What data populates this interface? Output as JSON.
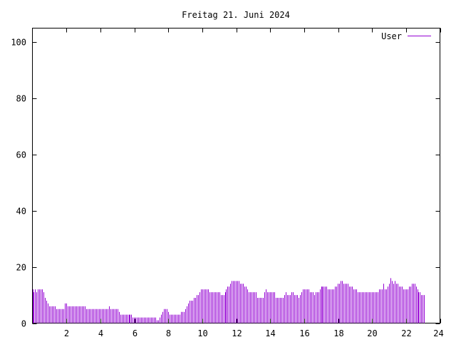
{
  "chart_data": {
    "type": "bar",
    "title": "Freitag 21. Juni 2024",
    "xlabel": "",
    "ylabel": "",
    "xlim": [
      0,
      24
    ],
    "ylim": [
      0,
      105
    ],
    "x_ticks": [
      2,
      4,
      6,
      8,
      10,
      12,
      14,
      16,
      18,
      20,
      22,
      24
    ],
    "y_ticks": [
      0,
      20,
      40,
      60,
      80,
      100
    ],
    "grid": false,
    "legend_position": "top-right",
    "series": [
      {
        "name": "User",
        "color": "#9400d3",
        "x_start": 0,
        "x_step": 0.0833,
        "values": [
          12,
          11,
          12,
          11,
          12,
          12,
          12,
          12,
          11,
          9,
          8,
          7,
          6,
          6,
          6,
          6,
          6,
          5,
          5,
          5,
          5,
          5,
          5,
          7,
          7,
          6,
          6,
          6,
          6,
          6,
          6,
          6,
          6,
          6,
          6,
          6,
          6,
          6,
          5,
          5,
          5,
          5,
          5,
          5,
          5,
          5,
          5,
          5,
          5,
          5,
          5,
          5,
          5,
          5,
          6,
          5,
          5,
          5,
          5,
          5,
          5,
          4,
          3,
          3,
          3,
          3,
          3,
          3,
          3,
          3,
          3,
          2,
          2,
          2,
          2,
          2,
          2,
          2,
          2,
          2,
          2,
          2,
          2,
          2,
          2,
          2,
          2,
          2,
          1,
          1,
          2,
          3,
          4,
          5,
          5,
          5,
          4,
          3,
          3,
          3,
          3,
          3,
          3,
          3,
          3,
          4,
          4,
          4,
          5,
          6,
          7,
          8,
          8,
          8,
          9,
          9,
          10,
          10,
          11,
          12,
          12,
          12,
          12,
          12,
          12,
          11,
          11,
          11,
          11,
          11,
          11,
          11,
          11,
          10,
          10,
          10,
          11,
          12,
          13,
          13,
          14,
          15,
          15,
          15,
          15,
          15,
          15,
          14,
          14,
          14,
          13,
          13,
          12,
          11,
          11,
          11,
          11,
          11,
          11,
          9,
          9,
          9,
          9,
          9,
          11,
          12,
          11,
          11,
          11,
          11,
          11,
          11,
          9,
          9,
          9,
          9,
          9,
          9,
          10,
          11,
          10,
          10,
          10,
          11,
          11,
          10,
          10,
          10,
          9,
          10,
          11,
          12,
          12,
          12,
          12,
          12,
          11,
          11,
          11,
          10,
          11,
          11,
          11,
          12,
          13,
          13,
          13,
          13,
          13,
          12,
          12,
          12,
          12,
          12,
          13,
          13,
          14,
          14,
          15,
          15,
          14,
          14,
          14,
          14,
          13,
          13,
          13,
          12,
          12,
          12,
          11,
          11,
          11,
          11,
          11,
          11,
          11,
          11,
          11,
          11,
          11,
          11,
          11,
          11,
          11,
          12,
          12,
          12,
          14,
          12,
          12,
          13,
          14,
          16,
          15,
          14,
          15,
          14,
          14,
          13,
          13,
          13,
          12,
          12,
          12,
          12,
          13,
          13,
          14,
          14,
          14,
          13,
          12,
          11,
          11,
          10,
          10,
          10
        ]
      }
    ]
  }
}
